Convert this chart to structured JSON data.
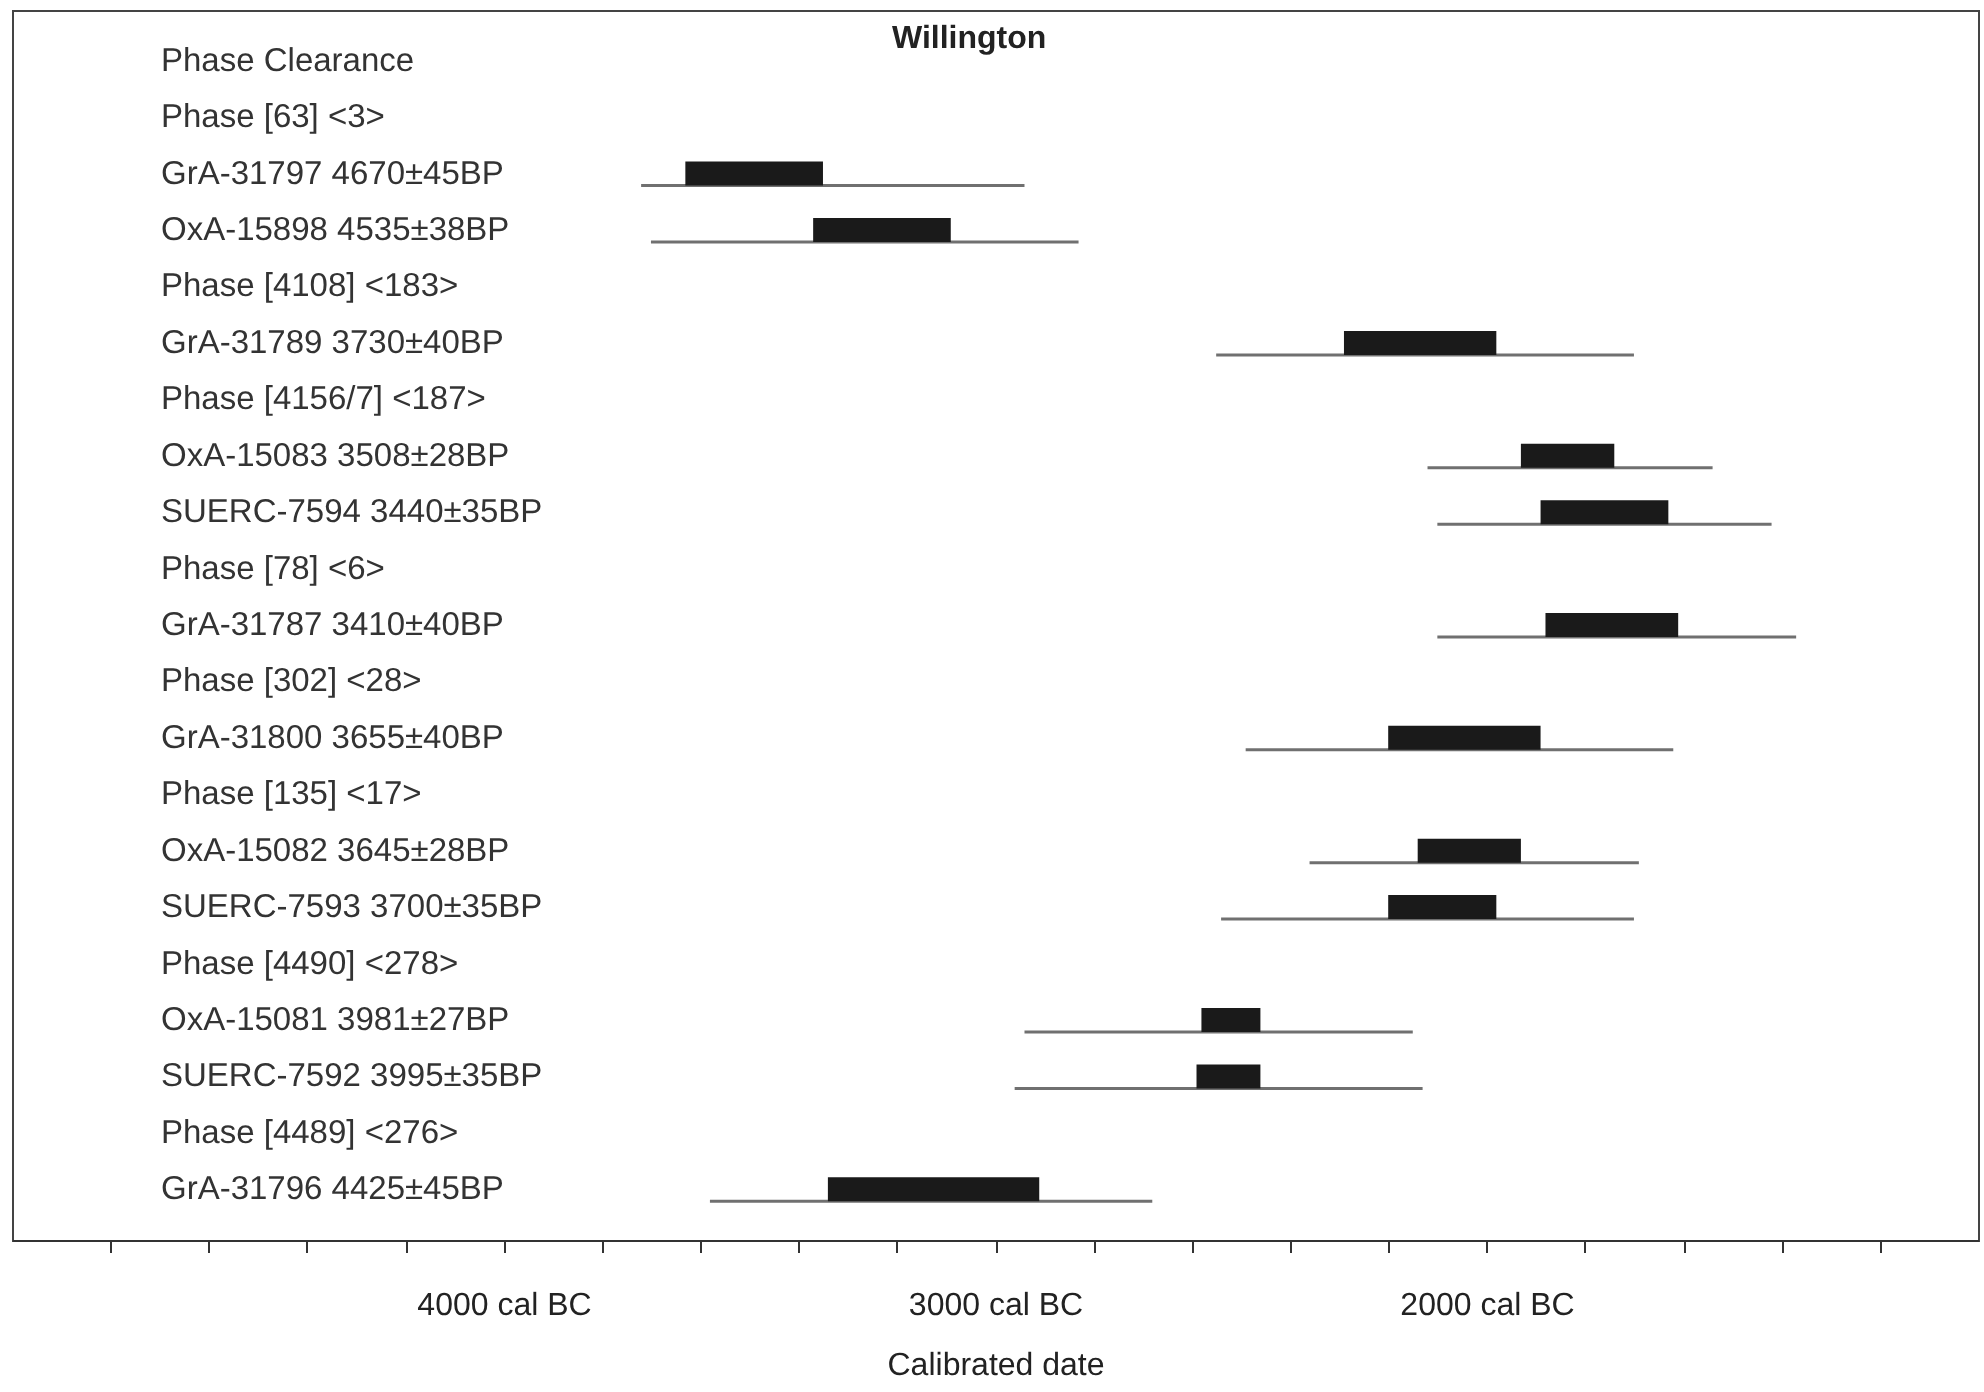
{
  "chart_data": {
    "type": "bar",
    "orientation": "horizontal",
    "title": "Willington",
    "xlabel": "Calibrated date",
    "categories": [
      "Phase Clearance",
      "Phase [63] <3>",
      "GrA-31797  4670±45BP",
      "OxA-15898  4535±38BP",
      "Phase [4108] <183>",
      "GrA-31789  3730±40BP",
      "Phase [4156/7] <187>",
      "OxA-15083  3508±28BP",
      "SUERC-7594  3440±35BP",
      "Phase [78] <6>",
      "GrA-31787  3410±40BP",
      "Phase [302] <28>",
      "GrA-31800  3655±40BP",
      "Phase [135] <17>",
      "OxA-15082  3645±28BP",
      "SUERC-7593  3700±35BP",
      "Phase [4490] <278>",
      "OxA-15081  3981±27BP",
      "SUERC-7592  3995±35BP",
      "Phase [4489] <276>",
      "GrA-31796  4425±45BP"
    ],
    "series": [
      {
        "color": "#707070",
        "base": [
          null,
          null,
          -3720,
          -3700,
          null,
          -2550,
          null,
          -2120,
          -2100,
          null,
          -2100,
          null,
          -2490,
          null,
          -2360,
          -2540,
          null,
          -2940,
          -2960,
          null,
          -3580
        ],
        "values": [
          null,
          null,
          780,
          870,
          null,
          850,
          null,
          580,
          680,
          null,
          730,
          null,
          870,
          null,
          670,
          840,
          null,
          790,
          830,
          null,
          900
        ]
      },
      {
        "color": "#1a1a1a",
        "base": [
          null,
          null,
          -3630,
          -3370,
          null,
          -2290,
          null,
          -1930,
          -1890,
          null,
          -1880,
          null,
          -2200,
          null,
          -2140,
          -2200,
          null,
          -2580,
          -2590,
          null,
          -3340
        ],
        "values": [
          null,
          null,
          280,
          280,
          null,
          310,
          null,
          190,
          260,
          null,
          270,
          null,
          310,
          null,
          210,
          220,
          null,
          120,
          130,
          null,
          430
        ]
      }
    ],
    "xlim": [
      -5000,
      -1000
    ],
    "xticks": [
      {
        "value": -4800,
        "label": null
      },
      {
        "value": -4600,
        "label": null
      },
      {
        "value": -4400,
        "label": null
      },
      {
        "value": -4200,
        "label": null
      },
      {
        "value": -4000,
        "label": "4000 cal BC"
      },
      {
        "value": -3800,
        "label": null
      },
      {
        "value": -3600,
        "label": null
      },
      {
        "value": -3400,
        "label": null
      },
      {
        "value": -3200,
        "label": null
      },
      {
        "value": -3000,
        "label": "3000 cal BC"
      },
      {
        "value": -2800,
        "label": null
      },
      {
        "value": -2600,
        "label": null
      },
      {
        "value": -2400,
        "label": null
      },
      {
        "value": -2200,
        "label": null
      },
      {
        "value": -2000,
        "label": "2000 cal BC"
      },
      {
        "value": -1800,
        "label": null
      },
      {
        "value": -1600,
        "label": null
      },
      {
        "value": -1400,
        "label": null
      },
      {
        "value": -1200,
        "label": null
      }
    ]
  }
}
